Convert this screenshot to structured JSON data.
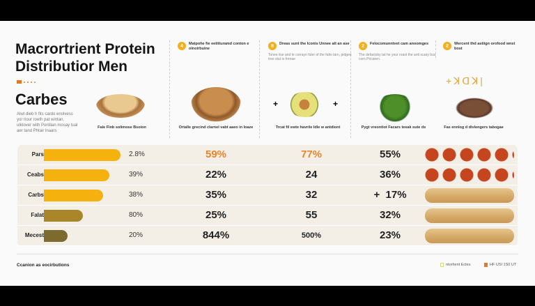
{
  "title": "Macrortrient Protein Distributior Men",
  "section_title": "Carbes",
  "section_desc": "Alwt dieb h fits cardo enolvess yor riour roeth pat wintan, ulktover with Pontiian mosay tual aer tand Phtair lnaars",
  "columns": [
    {
      "num": "4",
      "heading": "Matpohe fie eetitturamd conton e olnoirbuine",
      "sub": "",
      "caption": "Ortalle grecind clarnel vabt aaeo in Ioaze",
      "food": "peanuts"
    },
    {
      "num": "8",
      "heading": "Dreas sunt the Iconis Unnee alt an ase",
      "sub": "Tonee iise and te corrayn fuler of the falto tarn, pidgen tree stut io frenae",
      "caption": "Trcat fil ewte havrile Idle w antdiont",
      "food": "avocado"
    },
    {
      "num": "2",
      "heading": "Felocomunntvet cam anoomges",
      "sub": "The defactoby tat he your roast the anti ouary bus corn Pricaren.",
      "caption": "Pygt vreontiot Facars teeak sute ds",
      "food": "broccoli"
    },
    {
      "num": "2",
      "heading": "Wercent thd astiign orofood wnst bost",
      "sub": "",
      "caption": "Fas ennlog d divlengers tabogae",
      "food": "coffee-beans"
    }
  ],
  "first_item": {
    "caption": "Fale Finb solimose Bsoion",
    "food": "almonds"
  },
  "chart_data": {
    "type": "table",
    "rows": [
      "Pars",
      "Ceabs",
      "Carbs",
      "Falat",
      "Mecest"
    ],
    "bar_fill": [
      0.95,
      0.81,
      0.73,
      0.48,
      0.29
    ],
    "bar_labels": [
      "2.8%",
      "39%",
      "38%",
      "80%",
      "20%"
    ],
    "col2": [
      "59%",
      "22%",
      "35%",
      "25%",
      "844%"
    ],
    "col3": [
      "77%",
      "24",
      "32",
      "55",
      "500%"
    ],
    "col4": [
      "55%",
      "36%",
      "+  17%",
      "32%",
      "23%"
    ],
    "row_images": [
      "salami",
      "salami",
      "bread",
      "bread",
      "bread"
    ],
    "bar_colors": [
      "#f5b20e",
      "#f5b20e",
      "#f5b20e",
      "#a9862a",
      "#7c6a2e"
    ],
    "highlight_color": "#e8842a"
  },
  "footer": {
    "text": "Ccanion as eocirbutions",
    "legend": [
      {
        "label": "ntorhent Ectes",
        "color": "#cfe27a"
      },
      {
        "label": "HF USI 1S0 UT",
        "color": "#e07a28"
      }
    ]
  }
}
